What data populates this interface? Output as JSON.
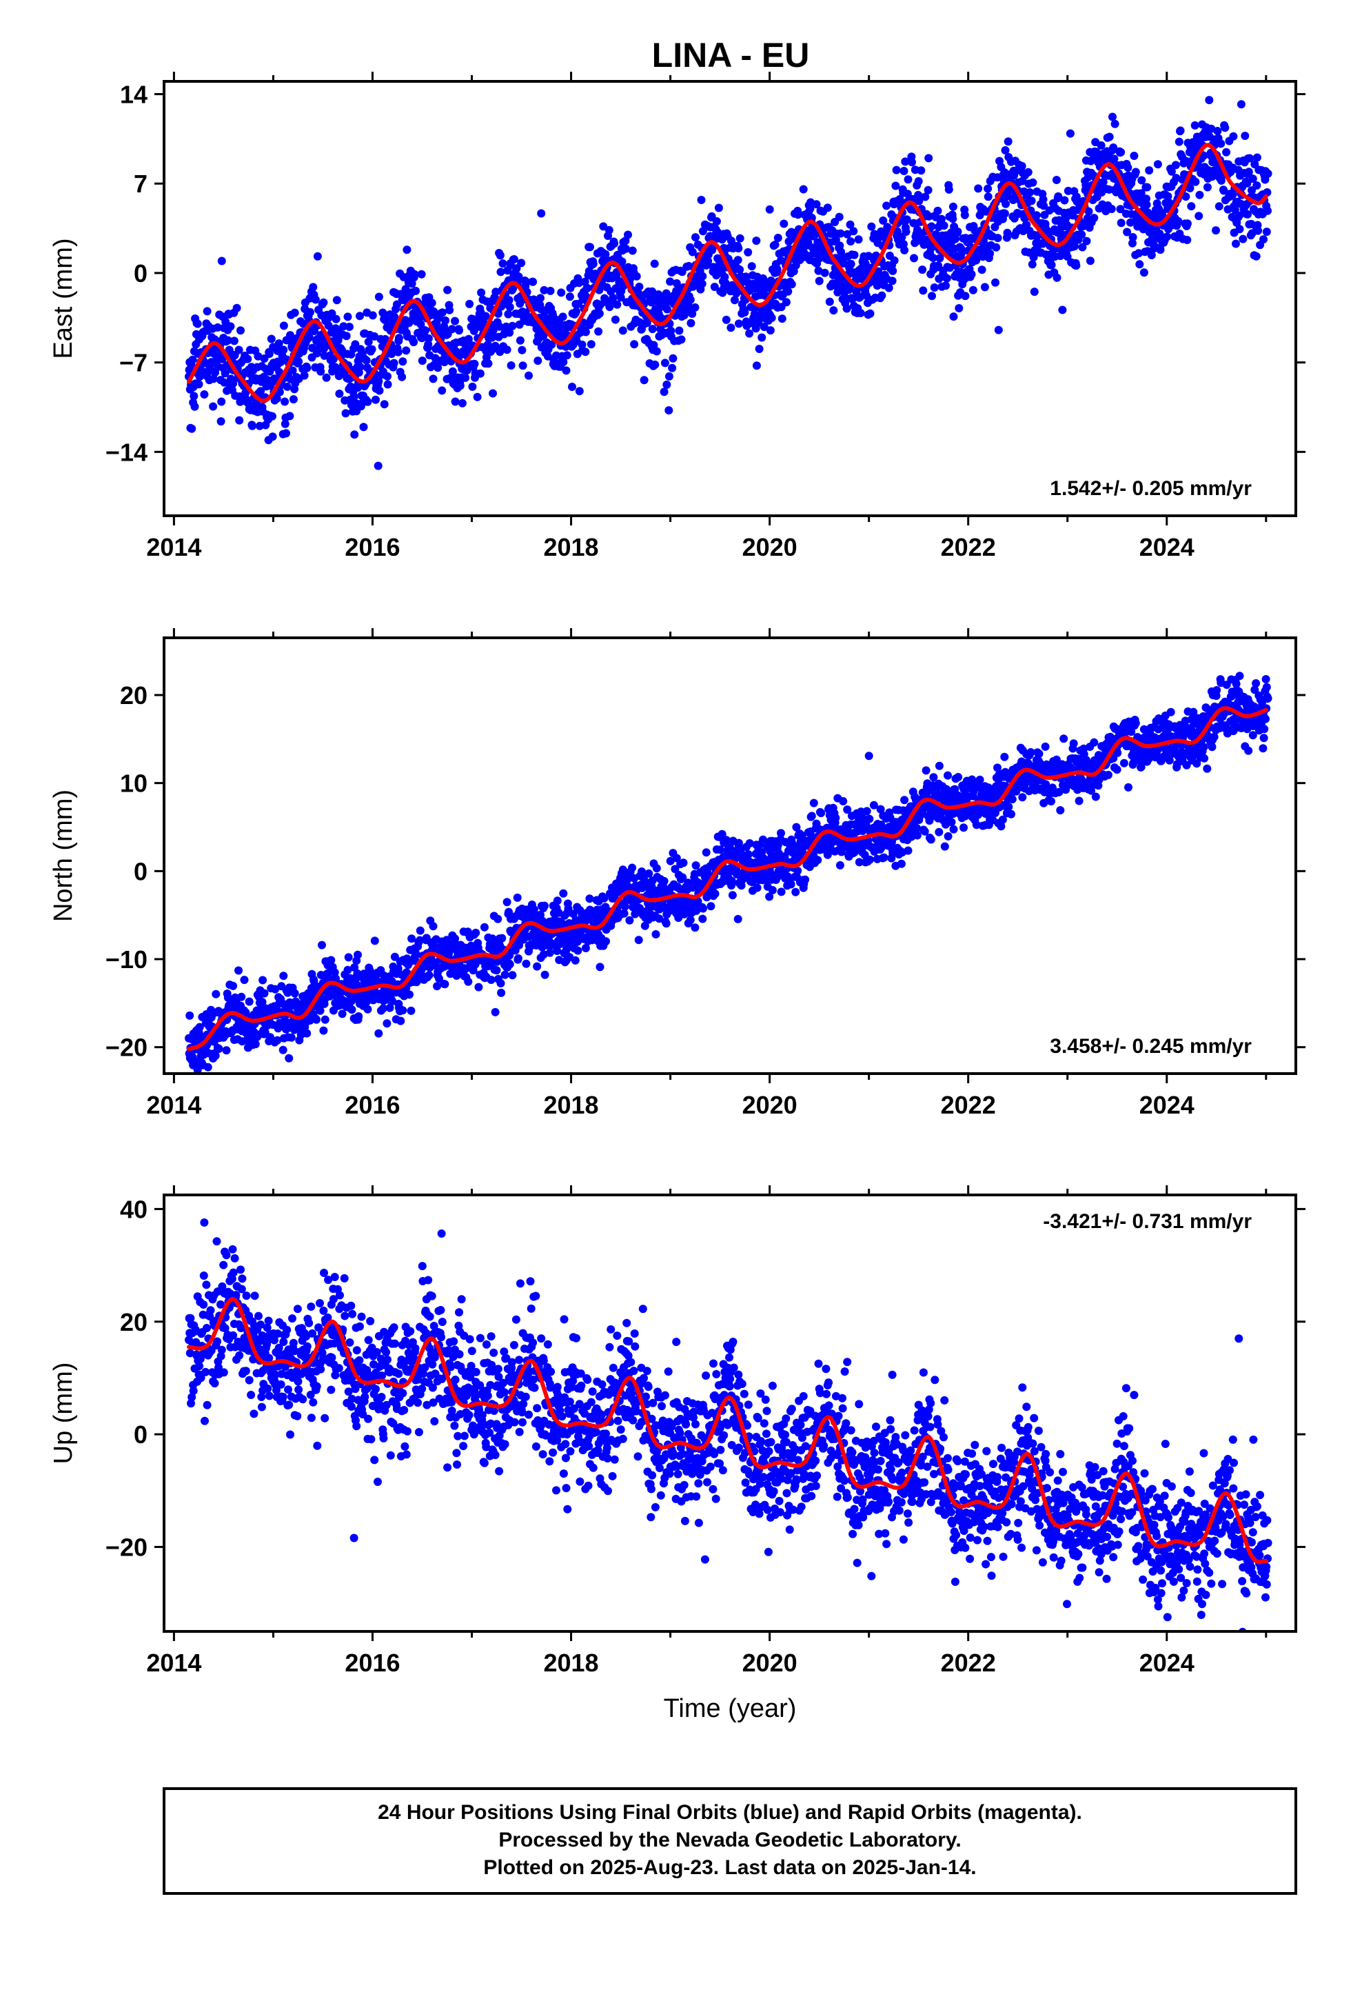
{
  "title": "LINA - EU",
  "footer": {
    "lines": [
      "24 Hour Positions Using Final Orbits (blue) and Rapid Orbits (magenta).",
      "Processed by the Nevada Geodetic Laboratory.",
      "Plotted on 2025-Aug-23. Last data on 2025-Jan-14."
    ]
  },
  "colors": {
    "points": "#0000ff",
    "fit": "#ff0000",
    "frame": "#000000"
  },
  "chart_data": [
    {
      "type": "scatter",
      "title": "LINA - EU",
      "ylabel": "East (mm)",
      "xlabel": "",
      "xlim": [
        2013.9,
        2025.3
      ],
      "ylim": [
        -19,
        15
      ],
      "xticks": [
        2014,
        2016,
        2018,
        2020,
        2022,
        2024
      ],
      "yticks": [
        -14,
        -7,
        0,
        7,
        14
      ],
      "rate_label": "1.542+/- 0.205 mm/yr",
      "rate_position": "bottom-right",
      "grid": false,
      "series": [
        {
          "kind": "fit-line",
          "x": [
            2014.15,
            2014.4,
            2014.65,
            2014.9,
            2015.1,
            2015.4,
            2015.65,
            2015.9,
            2016.1,
            2016.4,
            2016.65,
            2016.9,
            2017.1,
            2017.4,
            2017.65,
            2017.9,
            2018.1,
            2018.4,
            2018.65,
            2018.9,
            2019.1,
            2019.4,
            2019.65,
            2019.9,
            2020.1,
            2020.4,
            2020.65,
            2020.9,
            2021.1,
            2021.4,
            2021.65,
            2021.9,
            2022.1,
            2022.4,
            2022.65,
            2022.9,
            2023.1,
            2023.4,
            2023.65,
            2023.9,
            2024.1,
            2024.4,
            2024.65,
            2024.9,
            2025.0
          ],
          "y": [
            -8.5,
            -5.5,
            -8.0,
            -10.0,
            -8.0,
            -3.8,
            -6.5,
            -8.5,
            -6.5,
            -2.2,
            -5.0,
            -7.0,
            -5.0,
            -0.8,
            -3.5,
            -5.5,
            -3.5,
            0.8,
            -2.0,
            -4.0,
            -2.0,
            2.4,
            -0.5,
            -2.5,
            -0.5,
            4.0,
            1.0,
            -1.0,
            1.0,
            5.5,
            2.5,
            0.8,
            2.5,
            7.0,
            4.0,
            2.2,
            4.0,
            8.5,
            5.5,
            3.8,
            5.5,
            10.0,
            7.0,
            5.5,
            6.0
          ]
        }
      ]
    },
    {
      "type": "scatter",
      "ylabel": "North (mm)",
      "xlabel": "",
      "xlim": [
        2013.9,
        2025.3
      ],
      "ylim": [
        -23,
        26.5
      ],
      "xticks": [
        2014,
        2016,
        2018,
        2020,
        2022,
        2024
      ],
      "yticks": [
        -20,
        -10,
        0,
        10,
        20
      ],
      "rate_label": "3.458+/- 0.245 mm/yr",
      "rate_position": "bottom-right",
      "grid": false,
      "series": [
        {
          "kind": "fit-line",
          "x": [
            2014.15,
            2014.3,
            2014.55,
            2014.8,
            2015.1,
            2015.3,
            2015.55,
            2015.8,
            2016.1,
            2016.3,
            2016.55,
            2016.8,
            2017.1,
            2017.3,
            2017.55,
            2017.8,
            2018.1,
            2018.3,
            2018.55,
            2018.8,
            2019.1,
            2019.3,
            2019.55,
            2019.8,
            2020.1,
            2020.3,
            2020.55,
            2020.8,
            2021.1,
            2021.3,
            2021.55,
            2021.8,
            2022.1,
            2022.3,
            2022.55,
            2022.8,
            2023.1,
            2023.3,
            2023.55,
            2023.8,
            2024.1,
            2024.3,
            2024.55,
            2024.8,
            2025.0
          ],
          "y": [
            -20.2,
            -19.5,
            -16.2,
            -17.0,
            -16.2,
            -16.5,
            -12.8,
            -13.6,
            -13.0,
            -13.0,
            -9.5,
            -10.2,
            -9.5,
            -9.5,
            -6.0,
            -6.8,
            -6.2,
            -6.2,
            -2.5,
            -3.3,
            -2.7,
            -2.7,
            1.0,
            0.2,
            0.8,
            0.8,
            4.4,
            3.6,
            4.2,
            4.2,
            8.0,
            7.2,
            7.8,
            7.8,
            11.4,
            10.6,
            11.2,
            11.2,
            15.0,
            14.2,
            14.8,
            14.8,
            18.4,
            17.6,
            18.3
          ]
        }
      ]
    },
    {
      "type": "scatter",
      "ylabel": "Up (mm)",
      "xlabel": "Time (year)",
      "xlim": [
        2013.9,
        2025.3
      ],
      "ylim": [
        -35,
        42.5
      ],
      "xticks": [
        2014,
        2016,
        2018,
        2020,
        2022,
        2024
      ],
      "yticks": [
        -20,
        0,
        20,
        40
      ],
      "rate_label": "-3.421+/- 0.731 mm/yr",
      "rate_position": "top-right",
      "grid": false,
      "series": [
        {
          "kind": "fit-line",
          "x": [
            2014.15,
            2014.35,
            2014.6,
            2014.85,
            2015.1,
            2015.35,
            2015.6,
            2015.85,
            2016.1,
            2016.35,
            2016.6,
            2016.85,
            2017.1,
            2017.35,
            2017.6,
            2017.85,
            2018.1,
            2018.35,
            2018.6,
            2018.85,
            2019.1,
            2019.35,
            2019.6,
            2019.85,
            2020.1,
            2020.35,
            2020.6,
            2020.85,
            2021.1,
            2021.35,
            2021.6,
            2021.85,
            2022.1,
            2022.35,
            2022.6,
            2022.85,
            2023.1,
            2023.35,
            2023.6,
            2023.85,
            2024.1,
            2024.35,
            2024.6,
            2024.85,
            2025.0
          ],
          "y": [
            15.5,
            16.0,
            24.0,
            13.5,
            13.0,
            12.5,
            20.0,
            10.0,
            9.5,
            9.0,
            17.0,
            6.0,
            5.5,
            5.5,
            13.0,
            2.5,
            2.0,
            2.0,
            10.0,
            -1.5,
            -1.5,
            -2.0,
            6.5,
            -5.0,
            -5.0,
            -5.0,
            3.0,
            -8.5,
            -8.5,
            -9.0,
            -0.5,
            -12.0,
            -12.0,
            -12.5,
            -3.5,
            -15.5,
            -15.5,
            -15.5,
            -7.0,
            -19.0,
            -19.0,
            -19.0,
            -10.5,
            -21.5,
            -22.5
          ]
        }
      ]
    }
  ]
}
